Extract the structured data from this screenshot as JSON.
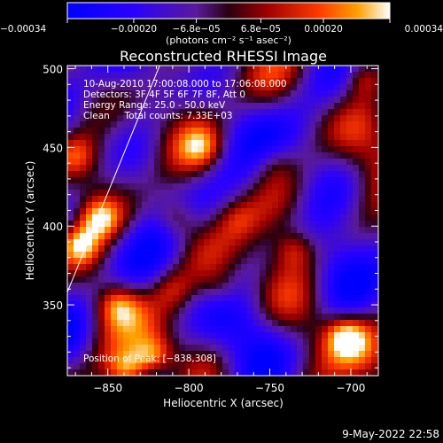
{
  "chart_data": {
    "type": "heatmap",
    "title": "Reconstructed RHESSI Image",
    "xlabel": "Heliocentric X (arcsec)",
    "ylabel": "Heliocentric Y (arcsec)",
    "xlim": [
      -875,
      -683
    ],
    "ylim": [
      305,
      502
    ],
    "xticks": [
      -850,
      -800,
      -750,
      -700
    ],
    "xtick_labels": [
      "−850",
      "−800",
      "−750",
      "−700"
    ],
    "yticks": [
      350,
      400,
      450,
      500
    ],
    "ytick_labels": [
      "350",
      "400",
      "450",
      "500"
    ],
    "colorbar": {
      "min": -0.00034,
      "max": 0.00034,
      "ticks": [
        -0.00034,
        -0.0002,
        -6.8e-05,
        6.8e-05,
        0.0002,
        0.00034
      ],
      "tick_labels": [
        "−0.00034",
        "−0.00020",
        "−6.8e−05",
        "6.8e−05",
        "0.00020",
        "0.00034"
      ],
      "unit_label": "(photons cm⁻² s⁻¹ asec⁻²)"
    },
    "info_lines": [
      "10-Aug-2010 17:00:08.000 to 17:06:08.000",
      "Detectors: 3F 4F 5F 6F 7F 8F, Att 0",
      "Energy Range: 25.0 - 50.0 keV",
      "Clean     Total counts: 7.33E+03"
    ],
    "peak_label": "Position of Peak: [−838,308]",
    "peak": [
      -838,
      308
    ],
    "limb_line": [
      [
        -875,
        358
      ],
      [
        -818,
        502
      ]
    ],
    "bright_sources": [
      {
        "x": -868,
        "y": 388,
        "value": 0.00034
      },
      {
        "x": -855,
        "y": 405,
        "value": 0.0003
      },
      {
        "x": -838,
        "y": 308,
        "value": 0.00034
      },
      {
        "x": -822,
        "y": 318,
        "value": 0.0003
      },
      {
        "x": -844,
        "y": 350,
        "value": 0.00022
      },
      {
        "x": -870,
        "y": 445,
        "value": 0.00018
      },
      {
        "x": -808,
        "y": 405,
        "value": 0.0002
      },
      {
        "x": -792,
        "y": 450,
        "value": 0.00018
      },
      {
        "x": -770,
        "y": 405,
        "value": 0.00012
      },
      {
        "x": -735,
        "y": 385,
        "value": 0.00018
      },
      {
        "x": -703,
        "y": 330,
        "value": 0.0003
      },
      {
        "x": -692,
        "y": 495,
        "value": 0.00022
      },
      {
        "x": -780,
        "y": 360,
        "value": 0.00012
      },
      {
        "x": -810,
        "y": 360,
        "value": 0.00015
      },
      {
        "x": -748,
        "y": 440,
        "value": 0.0001
      }
    ]
  },
  "footer": {
    "timestamp": "9-May-2022 22:58"
  }
}
